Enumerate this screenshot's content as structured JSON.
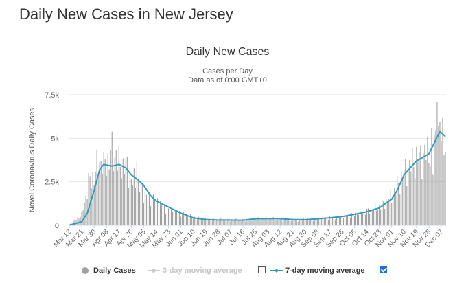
{
  "page": {
    "title": "Daily New Cases in New Jersey"
  },
  "chart_data": {
    "type": "bar",
    "title": "Daily New Cases",
    "subtitle": [
      "Cases per Day",
      "Data as of 0:00 GMT+0"
    ],
    "ylabel": "Novel Coronavirus Daily Cases",
    "xlabel": "",
    "ylim": [
      0,
      7500
    ],
    "yticks": [
      0,
      2500,
      5000,
      7500
    ],
    "ytick_labels": [
      "0",
      "2.5k",
      "5k",
      "7.5k"
    ],
    "xtick_labels": [
      "Mar 12",
      "Mar 21",
      "Mar 30",
      "Apr 08",
      "Apr 17",
      "Apr 26",
      "May 05",
      "May 14",
      "May 23",
      "Jun 01",
      "Jun 10",
      "Jun 19",
      "Jun 28",
      "Jul 07",
      "Jul 16",
      "Jul 25",
      "Aug 03",
      "Aug 12",
      "Aug 21",
      "Aug 30",
      "Sep 08",
      "Sep 17",
      "Sep 26",
      "Oct 05",
      "Oct 14",
      "Oct 23",
      "Nov 01",
      "Nov 10",
      "Nov 19",
      "Nov 28",
      "Dec 07"
    ],
    "daily_cases_anchors": [
      [
        "Mar 12",
        20
      ],
      [
        "Mar 21",
        600
      ],
      [
        "Mar 26",
        2400
      ],
      [
        "Mar 30",
        2900
      ],
      [
        "Apr 03",
        3700
      ],
      [
        "Apr 08",
        3600
      ],
      [
        "Apr 12",
        4200
      ],
      [
        "Apr 17",
        3500
      ],
      [
        "Apr 22",
        3400
      ],
      [
        "Apr 26",
        2600
      ],
      [
        "Apr 30",
        2400
      ],
      [
        "May 05",
        1900
      ],
      [
        "May 10",
        1400
      ],
      [
        "May 14",
        1600
      ],
      [
        "May 18",
        1100
      ],
      [
        "May 23",
        800
      ],
      [
        "Jun 01",
        700
      ],
      [
        "Jun 10",
        450
      ],
      [
        "Jun 19",
        330
      ],
      [
        "Jun 28",
        300
      ],
      [
        "Jul 07",
        290
      ],
      [
        "Jul 16",
        280
      ],
      [
        "Jul 25",
        350
      ],
      [
        "Aug 03",
        380
      ],
      [
        "Aug 12",
        350
      ],
      [
        "Aug 21",
        310
      ],
      [
        "Aug 30",
        340
      ],
      [
        "Sep 08",
        380
      ],
      [
        "Sep 17",
        430
      ],
      [
        "Sep 26",
        520
      ],
      [
        "Oct 05",
        650
      ],
      [
        "Oct 14",
        800
      ],
      [
        "Oct 23",
        1050
      ],
      [
        "Nov 01",
        1650
      ],
      [
        "Nov 10",
        3000
      ],
      [
        "Nov 19",
        3800
      ],
      [
        "Nov 28",
        4200
      ],
      [
        "Dec 03",
        5000
      ],
      [
        "Dec 07",
        5300
      ],
      [
        "Dec 10",
        5000
      ]
    ],
    "spikes": [
      [
        "Apr 06",
        4200
      ],
      [
        "Apr 15",
        4300
      ],
      [
        "Apr 30",
        3700
      ],
      [
        "Dec 04",
        7100
      ],
      [
        "Dec 01",
        2900
      ]
    ],
    "series": [
      {
        "name": "Daily Cases",
        "kind": "bar",
        "color": "#a0a0a0",
        "visible": true
      },
      {
        "name": "3-day moving average",
        "kind": "line",
        "color": "#cccccc",
        "visible": false
      },
      {
        "name": "7-day moving average",
        "kind": "line",
        "color": "#2f9bbd",
        "visible": true
      }
    ],
    "seven_day_avg_anchors": [
      [
        "Mar 12",
        10
      ],
      [
        "Mar 21",
        200
      ],
      [
        "Mar 25",
        700
      ],
      [
        "Mar 30",
        2000
      ],
      [
        "Apr 03",
        3200
      ],
      [
        "Apr 06",
        3500
      ],
      [
        "Apr 12",
        3400
      ],
      [
        "Apr 17",
        3500
      ],
      [
        "Apr 22",
        3300
      ],
      [
        "Apr 26",
        2900
      ],
      [
        "May 01",
        2600
      ],
      [
        "May 05",
        2300
      ],
      [
        "May 10",
        1700
      ],
      [
        "May 14",
        1400
      ],
      [
        "May 23",
        1050
      ],
      [
        "Jun 01",
        700
      ],
      [
        "Jun 10",
        430
      ],
      [
        "Jun 19",
        330
      ],
      [
        "Jun 28",
        300
      ],
      [
        "Jul 07",
        300
      ],
      [
        "Jul 16",
        290
      ],
      [
        "Jul 25",
        370
      ],
      [
        "Aug 03",
        380
      ],
      [
        "Aug 12",
        380
      ],
      [
        "Aug 21",
        330
      ],
      [
        "Aug 30",
        320
      ],
      [
        "Sep 08",
        370
      ],
      [
        "Sep 17",
        430
      ],
      [
        "Sep 26",
        500
      ],
      [
        "Oct 05",
        630
      ],
      [
        "Oct 14",
        780
      ],
      [
        "Oct 23",
        1000
      ],
      [
        "Nov 01",
        1500
      ],
      [
        "Nov 05",
        2000
      ],
      [
        "Nov 10",
        2900
      ],
      [
        "Nov 19",
        3700
      ],
      [
        "Nov 28",
        4100
      ],
      [
        "Dec 03",
        4900
      ],
      [
        "Dec 06",
        5400
      ],
      [
        "Dec 10",
        5100
      ]
    ]
  },
  "legend": {
    "daily_cases": "Daily Cases",
    "three_day": "3-day moving average",
    "seven_day": "7-day moving average",
    "three_day_checked": false,
    "seven_day_checked": true
  }
}
